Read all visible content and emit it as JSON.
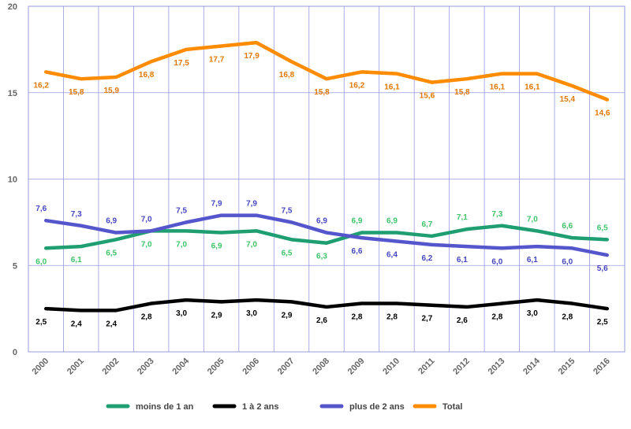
{
  "chart_data": {
    "type": "line",
    "title": "",
    "xlabel": "",
    "ylabel": "",
    "x": [
      "2000",
      "2001",
      "2002",
      "2003",
      "2004",
      "2005",
      "2006",
      "2007",
      "2008",
      "2009",
      "2010",
      "2011",
      "2012",
      "2013",
      "2014",
      "2015",
      "2016"
    ],
    "ylim": [
      0,
      20
    ],
    "yticks": [
      "0",
      "5",
      "10",
      "15",
      "20"
    ],
    "grid": true,
    "legend_position": "bottom",
    "series": [
      {
        "name": "moins de 1 an",
        "color": "#1f9e72",
        "label_color": "#3fc46a",
        "values": [
          6.0,
          6.1,
          6.5,
          7.0,
          7.0,
          6.9,
          7.0,
          6.5,
          6.3,
          6.9,
          6.9,
          6.7,
          7.1,
          7.3,
          7.0,
          6.6,
          6.5
        ],
        "labels": [
          "6,0",
          "6,1",
          "6,5",
          "7,0",
          "7,0",
          "6,9",
          "7,0",
          "6,5",
          "6,3",
          "6,9",
          "6,9",
          "6,7",
          "7,1",
          "7,3",
          "7,0",
          "6,6",
          "6,5"
        ],
        "label_side": [
          "below",
          "below",
          "below",
          "below",
          "below",
          "below",
          "below",
          "below",
          "below",
          "above",
          "above",
          "above",
          "above",
          "above",
          "above",
          "above",
          "above"
        ]
      },
      {
        "name": "1 à 2 ans",
        "color": "#000000",
        "label_color": "#000000",
        "values": [
          2.5,
          2.4,
          2.4,
          2.8,
          3.0,
          2.9,
          3.0,
          2.9,
          2.6,
          2.8,
          2.8,
          2.7,
          2.6,
          2.8,
          3.0,
          2.8,
          2.5
        ],
        "labels": [
          "2,5",
          "2,4",
          "2,4",
          "2,8",
          "3,0",
          "2,9",
          "3,0",
          "2,9",
          "2,6",
          "2,8",
          "2,8",
          "2,7",
          "2,6",
          "2,8",
          "3,0",
          "2,8",
          "2,5"
        ],
        "label_side": [
          "below",
          "below",
          "below",
          "below",
          "below",
          "below",
          "below",
          "below",
          "below",
          "below",
          "below",
          "below",
          "below",
          "below",
          "below",
          "below",
          "below"
        ]
      },
      {
        "name": "plus de 2 ans",
        "color": "#5656cc",
        "label_color": "#4646c0",
        "values": [
          7.6,
          7.3,
          6.9,
          7.0,
          7.5,
          7.9,
          7.9,
          7.5,
          6.9,
          6.6,
          6.4,
          6.2,
          6.1,
          6.0,
          6.1,
          6.0,
          5.6
        ],
        "labels": [
          "7,6",
          "7,3",
          "6,9",
          "7,0",
          "7,5",
          "7,9",
          "7,9",
          "7,5",
          "6,9",
          "6,6",
          "6,4",
          "6,2",
          "6,1",
          "6,0",
          "6,1",
          "6,0",
          "5,6"
        ],
        "label_side": [
          "above",
          "above",
          "above",
          "above",
          "above",
          "above",
          "above",
          "above",
          "above",
          "below",
          "below",
          "below",
          "below",
          "below",
          "below",
          "below",
          "below"
        ]
      },
      {
        "name": "Total",
        "color": "#ff8c00",
        "label_color": "#e07800",
        "values": [
          16.2,
          15.8,
          15.9,
          16.8,
          17.5,
          17.7,
          17.9,
          16.8,
          15.8,
          16.2,
          16.1,
          15.6,
          15.8,
          16.1,
          16.1,
          15.4,
          14.6
        ],
        "labels": [
          "16,2",
          "15,8",
          "15,9",
          "16,8",
          "17,5",
          "17,7",
          "17,9",
          "16,8",
          "15,8",
          "16,2",
          "16,1",
          "15,6",
          "15,8",
          "16,1",
          "16,1",
          "15,4",
          "14,6"
        ],
        "label_side": [
          "below",
          "below",
          "below",
          "below",
          "below",
          "below",
          "below",
          "below",
          "below",
          "below",
          "below",
          "below",
          "below",
          "below",
          "below",
          "below",
          "below"
        ]
      }
    ]
  }
}
